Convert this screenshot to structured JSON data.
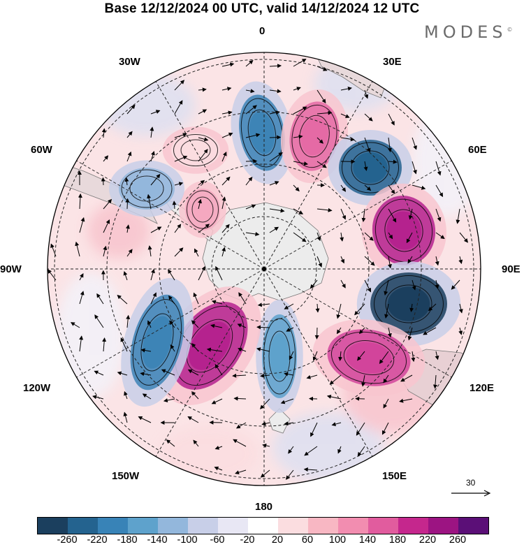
{
  "title": "Base 12/12/2024 00 UTC, valid 14/12/2024 12 UTC",
  "logo": "MODES",
  "logo_mark": "©",
  "longitude_labels": {
    "lon_0": "0",
    "lon_30e": "30E",
    "lon_60e": "60E",
    "lon_90e": "90E",
    "lon_120e": "120E",
    "lon_150e": "150E",
    "lon_180": "180",
    "lon_150w": "150W",
    "lon_120w": "120W",
    "lon_90w": "90W",
    "lon_60w": "60W",
    "lon_30w": "30W"
  },
  "reference_vector": "30",
  "colorbar": {
    "colors": [
      "#1b3f5e",
      "#24638f",
      "#3883b7",
      "#5ea2cc",
      "#93b7dc",
      "#c8cfe8",
      "#e8e7f4",
      "#ffffff",
      "#fbdde0",
      "#f8b7c3",
      "#f28db0",
      "#e15c9e",
      "#c5278d",
      "#9c1482",
      "#5b0f77"
    ],
    "ticks": [
      "-260",
      "-220",
      "-180",
      "-140",
      "-100",
      "-60",
      "-20",
      "20",
      "60",
      "100",
      "140",
      "180",
      "220",
      "260"
    ]
  },
  "anomaly_centers": [
    {
      "sign": "negative",
      "value": -180,
      "color": "#3d84b6"
    },
    {
      "sign": "positive",
      "value": 140,
      "color": "#e56aa5"
    },
    {
      "sign": "negative",
      "value": -220,
      "color": "#24638f"
    },
    {
      "sign": "positive",
      "value": 220,
      "color": "#b5228e"
    },
    {
      "sign": "negative",
      "value": -260,
      "color": "#1b3f5e"
    },
    {
      "sign": "positive",
      "value": 180,
      "color": "#d2449b"
    },
    {
      "sign": "negative",
      "value": -140,
      "color": "#5ea2cc"
    },
    {
      "sign": "positive",
      "value": 220,
      "color": "#b5228e"
    },
    {
      "sign": "negative",
      "value": -180,
      "color": "#3d84b6"
    },
    {
      "sign": "positive",
      "value": 100,
      "color": "#f5a8c0"
    },
    {
      "sign": "negative",
      "value": -100,
      "color": "#93b7dc"
    },
    {
      "sign": "positive",
      "value": 60,
      "color": "#fbdde0"
    }
  ]
}
